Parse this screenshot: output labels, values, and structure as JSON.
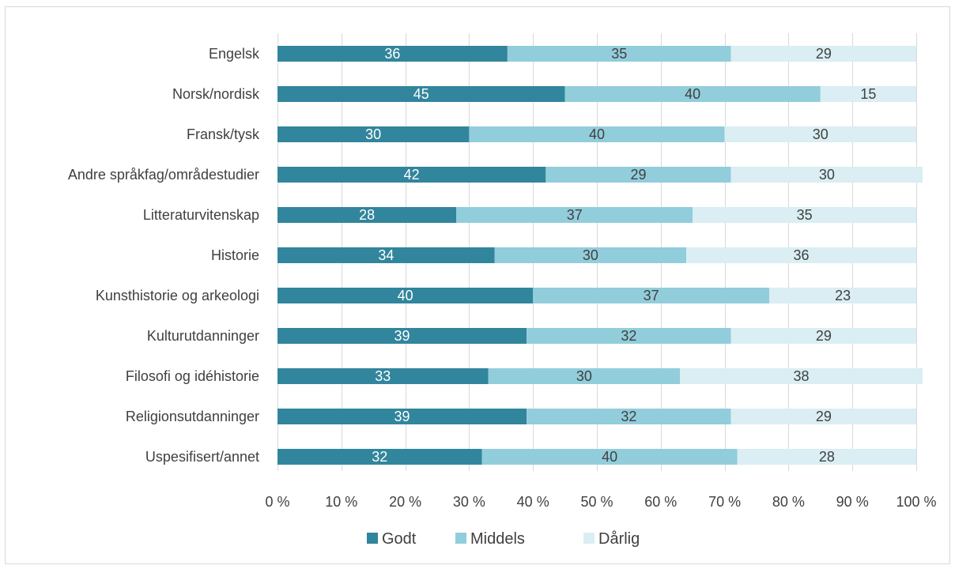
{
  "chart_data": {
    "type": "bar",
    "orientation": "horizontal",
    "stacked": "percent",
    "categories": [
      "Engelsk",
      "Norsk/nordisk",
      "Fransk/tysk",
      "Andre språkfag/områdestudier",
      "Litteraturvitenskap",
      "Historie",
      "Kunsthistorie og arkeologi",
      "Kulturutdanninger",
      "Filosofi og idéhistorie",
      "Religionsutdanninger",
      "Uspesifisert/annet"
    ],
    "series": [
      {
        "name": "Godt",
        "color": "#31859c",
        "label_color": "#ffffff",
        "values": [
          36,
          45,
          30,
          42,
          28,
          34,
          40,
          39,
          33,
          39,
          32
        ]
      },
      {
        "name": "Middels",
        "color": "#92cddc",
        "label_color": "#404040",
        "values": [
          35,
          40,
          40,
          29,
          37,
          30,
          37,
          32,
          30,
          32,
          40
        ]
      },
      {
        "name": "Dårlig",
        "color": "#daeef3",
        "label_color": "#404040",
        "values": [
          29,
          15,
          30,
          30,
          35,
          36,
          23,
          29,
          38,
          29,
          28
        ]
      }
    ],
    "xlim": [
      0,
      100
    ],
    "xticks": [
      "0 %",
      "10 %",
      "20 %",
      "30 %",
      "40 %",
      "50 %",
      "60 %",
      "70 %",
      "80 %",
      "90 %",
      "100 %"
    ],
    "grid": true,
    "legend_position": "bottom",
    "title": "",
    "xlabel": "",
    "ylabel": ""
  }
}
